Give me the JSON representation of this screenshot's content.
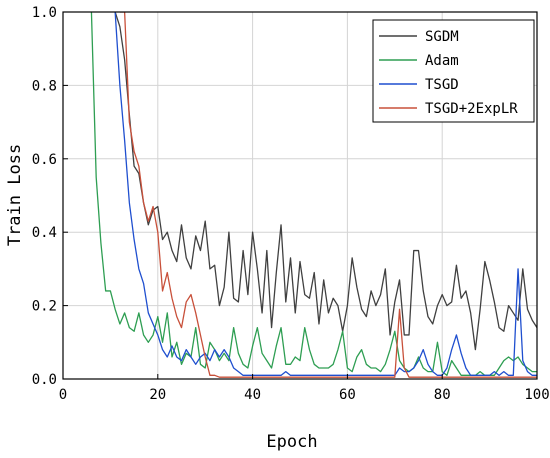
{
  "chart_data": {
    "type": "line",
    "xlabel": "Epoch",
    "ylabel": "Train Loss",
    "xlim": [
      0,
      100
    ],
    "ylim": [
      0,
      1.0
    ],
    "x_ticks": [
      0,
      20,
      40,
      60,
      80,
      100
    ],
    "y_ticks": [
      0.0,
      0.2,
      0.4,
      0.6,
      0.8,
      1.0
    ],
    "x_tick_labels": [
      "0",
      "20",
      "40",
      "60",
      "80",
      "100"
    ],
    "y_tick_labels": [
      "0.0",
      "0.2",
      "0.4",
      "0.6",
      "0.8",
      "1.0"
    ],
    "grid": true,
    "legend_position": "top-right",
    "series": [
      {
        "name": "SGDM",
        "color": "#404040",
        "x": [
          11,
          12,
          13,
          14,
          15,
          16,
          17,
          18,
          19,
          20,
          21,
          22,
          23,
          24,
          25,
          26,
          27,
          28,
          29,
          30,
          31,
          32,
          33,
          34,
          35,
          36,
          37,
          38,
          39,
          40,
          41,
          42,
          43,
          44,
          45,
          46,
          47,
          48,
          49,
          50,
          51,
          52,
          53,
          54,
          55,
          56,
          57,
          58,
          59,
          60,
          61,
          62,
          63,
          64,
          65,
          66,
          67,
          68,
          69,
          70,
          71,
          72,
          73,
          74,
          75,
          76,
          77,
          78,
          79,
          80,
          81,
          82,
          83,
          84,
          85,
          86,
          87,
          88,
          89,
          90,
          91,
          92,
          93,
          94,
          95,
          96,
          97,
          98,
          99,
          100
        ],
        "y": [
          1.0,
          0.96,
          0.87,
          0.72,
          0.58,
          0.56,
          0.48,
          0.42,
          0.46,
          0.47,
          0.38,
          0.4,
          0.35,
          0.32,
          0.42,
          0.33,
          0.3,
          0.39,
          0.35,
          0.43,
          0.3,
          0.31,
          0.2,
          0.25,
          0.4,
          0.22,
          0.21,
          0.35,
          0.23,
          0.4,
          0.3,
          0.18,
          0.35,
          0.14,
          0.29,
          0.42,
          0.21,
          0.33,
          0.18,
          0.32,
          0.23,
          0.22,
          0.29,
          0.15,
          0.27,
          0.18,
          0.22,
          0.2,
          0.13,
          0.2,
          0.33,
          0.25,
          0.19,
          0.17,
          0.24,
          0.2,
          0.23,
          0.3,
          0.12,
          0.21,
          0.27,
          0.12,
          0.12,
          0.35,
          0.35,
          0.24,
          0.17,
          0.15,
          0.2,
          0.23,
          0.2,
          0.21,
          0.31,
          0.22,
          0.24,
          0.18,
          0.08,
          0.19,
          0.32,
          0.27,
          0.21,
          0.14,
          0.13,
          0.2,
          0.18,
          0.16,
          0.3,
          0.19,
          0.16,
          0.14
        ]
      },
      {
        "name": "Adam",
        "color": "#2e9e52",
        "x": [
          6,
          7,
          8,
          9,
          10,
          11,
          12,
          13,
          14,
          15,
          16,
          17,
          18,
          19,
          20,
          21,
          22,
          23,
          24,
          25,
          26,
          27,
          28,
          29,
          30,
          31,
          32,
          33,
          34,
          35,
          36,
          37,
          38,
          39,
          40,
          41,
          42,
          43,
          44,
          45,
          46,
          47,
          48,
          49,
          50,
          51,
          52,
          53,
          54,
          55,
          56,
          57,
          58,
          59,
          60,
          61,
          62,
          63,
          64,
          65,
          66,
          67,
          68,
          69,
          70,
          71,
          72,
          73,
          74,
          75,
          76,
          77,
          78,
          79,
          80,
          81,
          82,
          83,
          84,
          85,
          86,
          87,
          88,
          89,
          90,
          91,
          92,
          93,
          94,
          95,
          96,
          97,
          98,
          99,
          100
        ],
        "y": [
          1.0,
          0.55,
          0.37,
          0.24,
          0.24,
          0.19,
          0.15,
          0.18,
          0.14,
          0.13,
          0.18,
          0.12,
          0.1,
          0.12,
          0.17,
          0.1,
          0.18,
          0.06,
          0.1,
          0.04,
          0.07,
          0.06,
          0.14,
          0.04,
          0.03,
          0.1,
          0.08,
          0.05,
          0.07,
          0.05,
          0.14,
          0.07,
          0.04,
          0.03,
          0.09,
          0.14,
          0.07,
          0.05,
          0.03,
          0.09,
          0.14,
          0.04,
          0.04,
          0.06,
          0.05,
          0.14,
          0.08,
          0.04,
          0.03,
          0.03,
          0.03,
          0.04,
          0.08,
          0.13,
          0.03,
          0.02,
          0.06,
          0.08,
          0.04,
          0.03,
          0.03,
          0.02,
          0.04,
          0.08,
          0.13,
          0.05,
          0.03,
          0.02,
          0.03,
          0.06,
          0.03,
          0.02,
          0.02,
          0.1,
          0.02,
          0.01,
          0.05,
          0.03,
          0.01,
          0.01,
          0.01,
          0.01,
          0.02,
          0.01,
          0.01,
          0.01,
          0.03,
          0.05,
          0.06,
          0.05,
          0.06,
          0.04,
          0.03,
          0.02,
          0.02
        ]
      },
      {
        "name": "TSGD",
        "color": "#1f4fcf",
        "x": [
          11,
          12,
          13,
          14,
          15,
          16,
          17,
          18,
          19,
          20,
          21,
          22,
          23,
          24,
          25,
          26,
          27,
          28,
          29,
          30,
          31,
          32,
          33,
          34,
          35,
          36,
          37,
          38,
          39,
          40,
          41,
          42,
          43,
          44,
          45,
          46,
          47,
          48,
          49,
          50,
          51,
          52,
          53,
          54,
          55,
          56,
          57,
          58,
          59,
          60,
          61,
          62,
          63,
          64,
          65,
          66,
          67,
          68,
          69,
          70,
          71,
          72,
          73,
          74,
          75,
          76,
          77,
          78,
          79,
          80,
          81,
          82,
          83,
          84,
          85,
          86,
          87,
          88,
          89,
          90,
          91,
          92,
          93,
          94,
          95,
          96,
          97,
          98,
          99,
          100
        ],
        "y": [
          1.0,
          0.8,
          0.65,
          0.48,
          0.38,
          0.3,
          0.26,
          0.18,
          0.15,
          0.12,
          0.08,
          0.06,
          0.09,
          0.06,
          0.05,
          0.08,
          0.06,
          0.04,
          0.06,
          0.07,
          0.05,
          0.08,
          0.06,
          0.08,
          0.06,
          0.03,
          0.02,
          0.01,
          0.01,
          0.01,
          0.01,
          0.01,
          0.01,
          0.01,
          0.01,
          0.01,
          0.02,
          0.01,
          0.01,
          0.01,
          0.01,
          0.01,
          0.01,
          0.01,
          0.01,
          0.01,
          0.01,
          0.01,
          0.01,
          0.01,
          0.01,
          0.01,
          0.01,
          0.01,
          0.01,
          0.01,
          0.01,
          0.01,
          0.01,
          0.01,
          0.03,
          0.02,
          0.02,
          0.03,
          0.05,
          0.08,
          0.04,
          0.02,
          0.01,
          0.01,
          0.03,
          0.08,
          0.12,
          0.07,
          0.03,
          0.01,
          0.01,
          0.01,
          0.01,
          0.01,
          0.02,
          0.01,
          0.02,
          0.01,
          0.01,
          0.3,
          0.05,
          0.02,
          0.01,
          0.01
        ]
      },
      {
        "name": "TSGD+2ExpLR",
        "color": "#c8503a",
        "x": [
          12,
          13,
          14,
          15,
          16,
          17,
          18,
          19,
          20,
          21,
          22,
          23,
          24,
          25,
          26,
          27,
          28,
          29,
          30,
          31,
          32,
          33,
          34,
          35,
          36,
          37,
          38,
          39,
          40,
          41,
          42,
          43,
          44,
          45,
          46,
          47,
          48,
          49,
          50,
          51,
          52,
          53,
          54,
          55,
          56,
          57,
          58,
          59,
          60,
          61,
          62,
          63,
          64,
          65,
          66,
          67,
          68,
          69,
          70,
          71,
          72,
          73,
          74,
          75,
          76,
          77,
          78,
          79,
          80,
          81,
          82,
          83,
          84,
          85,
          86,
          87,
          88,
          89,
          90,
          91,
          92,
          93,
          94,
          95,
          96,
          97,
          98,
          99,
          100
        ],
        "y": [
          1.0,
          1.0,
          0.7,
          0.62,
          0.58,
          0.48,
          0.43,
          0.47,
          0.4,
          0.24,
          0.29,
          0.22,
          0.17,
          0.14,
          0.21,
          0.23,
          0.18,
          0.12,
          0.06,
          0.01,
          0.01,
          0.005,
          0.005,
          0.005,
          0.005,
          0.005,
          0.005,
          0.005,
          0.005,
          0.005,
          0.005,
          0.005,
          0.005,
          0.005,
          0.005,
          0.005,
          0.005,
          0.005,
          0.005,
          0.005,
          0.005,
          0.005,
          0.005,
          0.005,
          0.005,
          0.005,
          0.005,
          0.005,
          0.005,
          0.005,
          0.005,
          0.005,
          0.005,
          0.005,
          0.005,
          0.005,
          0.005,
          0.005,
          0.005,
          0.19,
          0.03,
          0.005,
          0.005,
          0.005,
          0.005,
          0.005,
          0.005,
          0.005,
          0.005,
          0.005,
          0.005,
          0.005,
          0.005,
          0.005,
          0.005,
          0.005,
          0.005,
          0.005,
          0.005,
          0.005,
          0.005,
          0.005,
          0.005,
          0.005,
          0.005,
          0.005,
          0.005,
          0.005,
          0.005
        ]
      }
    ]
  }
}
